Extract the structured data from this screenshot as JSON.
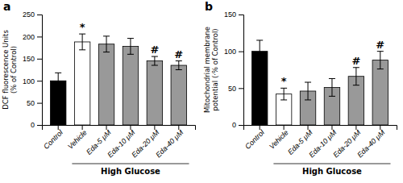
{
  "chart_data": [
    {
      "type": "bar",
      "title": "a",
      "ylabel": "DCF fluorescence Units\n(% of Control)",
      "xlabel": "High Glucose",
      "categories": [
        "Control",
        "Vehicle",
        "Eda-5 μM",
        "Eda-10 μM",
        "Eda-20 μM",
        "Eda-40 μM"
      ],
      "values": [
        100,
        188,
        183,
        178,
        145,
        135
      ],
      "errors": [
        18,
        18,
        18,
        18,
        10,
        10
      ],
      "colors": [
        "#000000",
        "#ffffff",
        "#999999",
        "#999999",
        "#999999",
        "#999999"
      ],
      "ylim": [
        0,
        250
      ],
      "yticks": [
        0,
        50,
        100,
        150,
        200,
        250
      ],
      "annotations": [
        {
          "text": "*",
          "category": "Vehicle"
        },
        {
          "text": "#",
          "category": "Eda-20 μM"
        },
        {
          "text": "#",
          "category": "Eda-40 μM"
        }
      ]
    },
    {
      "type": "bar",
      "title": "b",
      "ylabel": "Mitochondrial membrane\npotential (·% of Control)",
      "xlabel": "High Glucose",
      "categories": [
        "Control",
        "Vehicle",
        "Eda-5 μM",
        "Eda-10 μM",
        "Eda-20 μM",
        "Eda-40 μM"
      ],
      "values": [
        100,
        42,
        46,
        51,
        66,
        88
      ],
      "errors": [
        15,
        8,
        12,
        12,
        12,
        12
      ],
      "colors": [
        "#000000",
        "#ffffff",
        "#999999",
        "#999999",
        "#999999",
        "#999999"
      ],
      "ylim": [
        0,
        150
      ],
      "yticks": [
        0,
        50,
        100,
        150
      ],
      "annotations": [
        {
          "text": "*",
          "category": "Vehicle"
        },
        {
          "text": "#",
          "category": "Eda-20 μM"
        },
        {
          "text": "#",
          "category": "Eda-40 μM"
        }
      ]
    }
  ]
}
